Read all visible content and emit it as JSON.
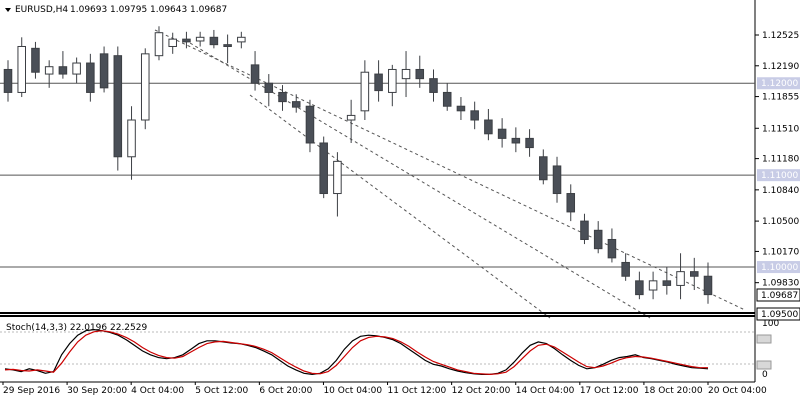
{
  "header": {
    "symbol": "EURUSD,H4",
    "open": "1.09693",
    "high": "1.09795",
    "low": "1.09643",
    "close": "1.09687"
  },
  "colors": {
    "bull": "#ffffff",
    "bear": "#4a4f57",
    "outline": "#3c3f44",
    "level_line": "#555555",
    "channel": "#333333",
    "stoch_main": "#000000",
    "stoch_signal": "#cc0000",
    "level_badge_bg": "#c8cce6",
    "level_badge_text": "#ffffff",
    "current_badge_bg": "#ffffff"
  },
  "chart_data": [
    {
      "type": "candlestick",
      "title": "EURUSD,H4",
      "ylim": [
        1.095,
        1.1271
      ],
      "y_ticks": [
        "1.12525",
        "1.12190",
        "1.11855",
        "1.11510",
        "1.11180",
        "1.10840",
        "1.10500",
        "1.10170",
        "1.09830",
        "1.09500"
      ],
      "horizontal_levels": [
        "1.12000",
        "1.11000",
        "1.10000"
      ],
      "current_price": "1.09687",
      "bottom_line": "1.09500",
      "x_tick_labels": [
        "29 Sep 2016",
        "30 Sep 20:00",
        "4 Oct 04:00",
        "5 Oct 12:00",
        "6 Oct 20:00",
        "10 Oct 04:00",
        "11 Oct 12:00",
        "12 Oct 20:00",
        "14 Oct 04:00",
        "17 Oct 12:00",
        "18 Oct 20:00",
        "20 Oct 04:00"
      ],
      "candles": [
        [
          1.1215,
          1.1225,
          1.118,
          1.119
        ],
        [
          1.119,
          1.125,
          1.1185,
          1.124
        ],
        [
          1.1238,
          1.1245,
          1.1205,
          1.1212
        ],
        [
          1.121,
          1.1225,
          1.1195,
          1.1218
        ],
        [
          1.1218,
          1.1235,
          1.1205,
          1.121
        ],
        [
          1.121,
          1.1228,
          1.12,
          1.1222
        ],
        [
          1.1222,
          1.1232,
          1.118,
          1.119
        ],
        [
          1.1232,
          1.124,
          1.119,
          1.1195
        ],
        [
          1.123,
          1.124,
          1.1105,
          1.112
        ],
        [
          1.112,
          1.1175,
          1.1095,
          1.116
        ],
        [
          1.116,
          1.1238,
          1.115,
          1.1232
        ],
        [
          1.123,
          1.1262,
          1.1225,
          1.1255
        ],
        [
          1.124,
          1.1255,
          1.1232,
          1.1248
        ],
        [
          1.1248,
          1.1256,
          1.1238,
          1.1245
        ],
        [
          1.1246,
          1.1256,
          1.124,
          1.125
        ],
        [
          1.125,
          1.1258,
          1.1238,
          1.1242
        ],
        [
          1.1242,
          1.1253,
          1.1222,
          1.124
        ],
        [
          1.1245,
          1.1256,
          1.1238,
          1.125
        ],
        [
          1.122,
          1.1235,
          1.1192,
          1.12
        ],
        [
          1.12,
          1.121,
          1.1175,
          1.119
        ],
        [
          1.119,
          1.1198,
          1.117,
          1.118
        ],
        [
          1.118,
          1.1188,
          1.1168,
          1.1174
        ],
        [
          1.1175,
          1.1182,
          1.1125,
          1.1135
        ],
        [
          1.1135,
          1.1142,
          1.1075,
          1.108
        ],
        [
          1.108,
          1.1125,
          1.1055,
          1.1115
        ],
        [
          1.116,
          1.1182,
          1.1135,
          1.1165
        ],
        [
          1.117,
          1.1225,
          1.116,
          1.1212
        ],
        [
          1.121,
          1.1225,
          1.118,
          1.1192
        ],
        [
          1.119,
          1.122,
          1.1175,
          1.1215
        ],
        [
          1.1205,
          1.1235,
          1.1185,
          1.1215
        ],
        [
          1.1215,
          1.123,
          1.1195,
          1.1205
        ],
        [
          1.1205,
          1.1215,
          1.118,
          1.119
        ],
        [
          1.119,
          1.12,
          1.117,
          1.1175
        ],
        [
          1.1175,
          1.1185,
          1.116,
          1.117
        ],
        [
          1.117,
          1.118,
          1.115,
          1.116
        ],
        [
          1.116,
          1.1172,
          1.1138,
          1.1145
        ],
        [
          1.115,
          1.1162,
          1.113,
          1.114
        ],
        [
          1.114,
          1.1152,
          1.1125,
          1.1135
        ],
        [
          1.114,
          1.115,
          1.112,
          1.113
        ],
        [
          1.112,
          1.1128,
          1.109,
          1.1095
        ],
        [
          1.111,
          1.112,
          1.107,
          1.108
        ],
        [
          1.108,
          1.109,
          1.105,
          1.106
        ],
        [
          1.105,
          1.1058,
          1.1025,
          1.103
        ],
        [
          1.104,
          1.105,
          1.1015,
          1.102
        ],
        [
          1.103,
          1.1042,
          1.1005,
          1.101
        ],
        [
          1.1005,
          1.1015,
          1.0985,
          1.099
        ],
        [
          1.0985,
          1.0995,
          1.0965,
          1.097
        ],
        [
          1.0975,
          1.0995,
          1.0965,
          1.0985
        ],
        [
          1.0985,
          1.1,
          1.097,
          1.098
        ],
        [
          1.098,
          1.1015,
          1.0965,
          1.0995
        ],
        [
          1.0995,
          1.101,
          1.0975,
          1.099
        ],
        [
          1.099,
          1.1005,
          1.096,
          1.097
        ]
      ]
    },
    {
      "type": "line",
      "title": "Stoch(14,3,3) 22.0196 22.2529",
      "ylim": [
        0,
        100
      ],
      "y_ticks": [
        "100",
        "0"
      ],
      "series": [
        {
          "values": [
            20,
            18,
            15,
            20,
            17,
            12,
            15,
            45,
            65,
            80,
            88,
            90,
            88,
            85,
            80,
            72,
            62,
            52,
            45,
            40,
            38,
            40,
            45,
            55,
            65,
            70,
            70,
            68,
            66,
            65,
            62,
            58,
            52,
            45,
            35,
            25,
            18,
            12,
            10,
            12,
            20,
            35,
            55,
            70,
            78,
            80,
            79,
            76,
            72,
            65,
            55,
            45,
            35,
            28,
            25,
            20,
            16,
            13,
            11,
            10,
            10,
            12,
            18,
            32,
            48,
            62,
            68,
            65,
            56,
            45,
            35,
            26,
            20,
            22,
            28,
            35,
            40,
            42,
            45,
            40,
            38,
            35,
            32,
            28,
            25,
            22,
            21,
            20
          ]
        },
        {
          "values": [
            18,
            19,
            17,
            16,
            18,
            16,
            14,
            30,
            50,
            68,
            80,
            86,
            88,
            86,
            82,
            76,
            68,
            58,
            50,
            44,
            40,
            39,
            42,
            50,
            58,
            65,
            68,
            69,
            67,
            65,
            63,
            60,
            55,
            49,
            40,
            31,
            23,
            16,
            12,
            11,
            15,
            26,
            42,
            58,
            70,
            76,
            78,
            77,
            74,
            68,
            60,
            50,
            41,
            33,
            28,
            23,
            18,
            15,
            12,
            11,
            10,
            11,
            14,
            24,
            38,
            52,
            62,
            64,
            59,
            50,
            41,
            32,
            24,
            22,
            25,
            30,
            36,
            40,
            42,
            41,
            39,
            36,
            33,
            30,
            27,
            24,
            22,
            22
          ]
        }
      ]
    }
  ]
}
